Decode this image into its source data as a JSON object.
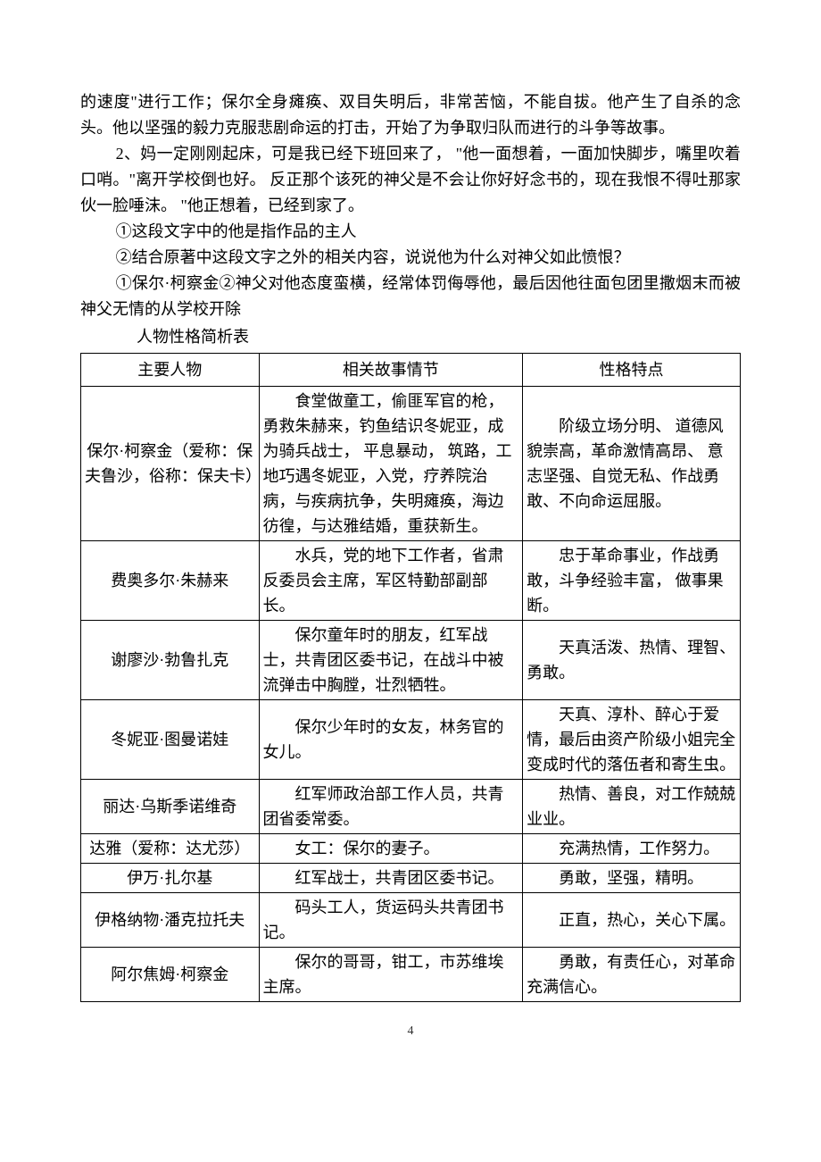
{
  "paragraphs": {
    "p1": "的速度\"进行工作；保尔全身瘫痪、双目失明后，非常苦恼，不能自拔。他产生了自杀的念头。他以坚强的毅力克服悲剧命运的打击，开始了为争取归队而进行的斗争等故事。",
    "p2": "2、妈一定刚刚起床，可是我已经下班回来了， \"他一面想着，一面加快脚步，嘴里吹着口哨。\"离开学校倒也好。 反正那个该死的神父是不会让你好好念书的，现在我恨不得吐那家伙一脸唾沫。 \"他正想着，已经到家了。",
    "p3": "①这段文字中的他是指作品的主人",
    "p4": "②结合原著中这段文字之外的相关内容，说说他为什么对神父如此愤恨？",
    "p5": "①保尔·柯察金②神父对他态度蛮横，经常体罚侮辱他，最后因他往面包团里撒烟末而被神父无情的从学校开除",
    "tableTitle": "人物性格简析表"
  },
  "tableHeaders": {
    "col1": "主要人物",
    "col2": "相关故事情节",
    "col3": "性格特点"
  },
  "characters": [
    {
      "name": "保尔·柯察金（爱称：保夫鲁沙，俗称：保夫卡）",
      "story": "食堂做童工，偷匪军官的枪，勇救朱赫来，钓鱼结识冬妮亚，成为骑兵战士， 平息暴动， 筑路，工地巧遇冬妮亚，入党，疗养院治病，与疾病抗争，失明瘫痪，海边彷徨，与达雅结婚，重获新生。",
      "trait": "阶级立场分明、 道德风貌崇高，革命激情高昂、 意志坚强、自觉无私、作战勇敢、不向命运屈服。"
    },
    {
      "name": "费奥多尔·朱赫来",
      "story": "水兵，党的地下工作者，省肃反委员会主席，军区特勤部副部长。",
      "trait": "忠于革命事业，作战勇敢，斗争经验丰富， 做事果断。"
    },
    {
      "name": "谢廖沙·勃鲁扎克",
      "story": "保尔童年时的朋友，红军战士，共青团区委书记，在战斗中被流弹击中胸膛，壮烈牺牲。",
      "trait": "天真活泼、热情、理智、勇敢。"
    },
    {
      "name": "冬妮亚·图曼诺娃",
      "story": "保尔少年时的女友，林务官的女儿。",
      "trait": "天真、淳朴、醉心于爱情，最后由资产阶级小姐完全变成时代的落伍者和寄生虫。"
    },
    {
      "name": "丽达·乌斯季诺维奇",
      "story": "红军师政治部工作人员，共青团省委常委。",
      "trait": "热情、善良，对工作兢兢业业。"
    },
    {
      "name": "达雅（爱称：达尤莎）",
      "story": "女工：保尔的妻子。",
      "trait": "充满热情，工作努力。"
    },
    {
      "name": "伊万·扎尔基",
      "story": "红军战士，共青团区委书记。",
      "trait": "勇敢，坚强，精明。"
    },
    {
      "name": "伊格纳物·潘克拉托夫",
      "story": "码头工人，货运码头共青团书记。",
      "trait": "正直，热心，关心下属。"
    },
    {
      "name": "阿尔焦姆·柯察金",
      "story": "保尔的哥哥，钳工，市苏维埃主席。",
      "trait": "勇敢，有责任心，对革命充满信心。"
    }
  ],
  "pageNumber": "4"
}
